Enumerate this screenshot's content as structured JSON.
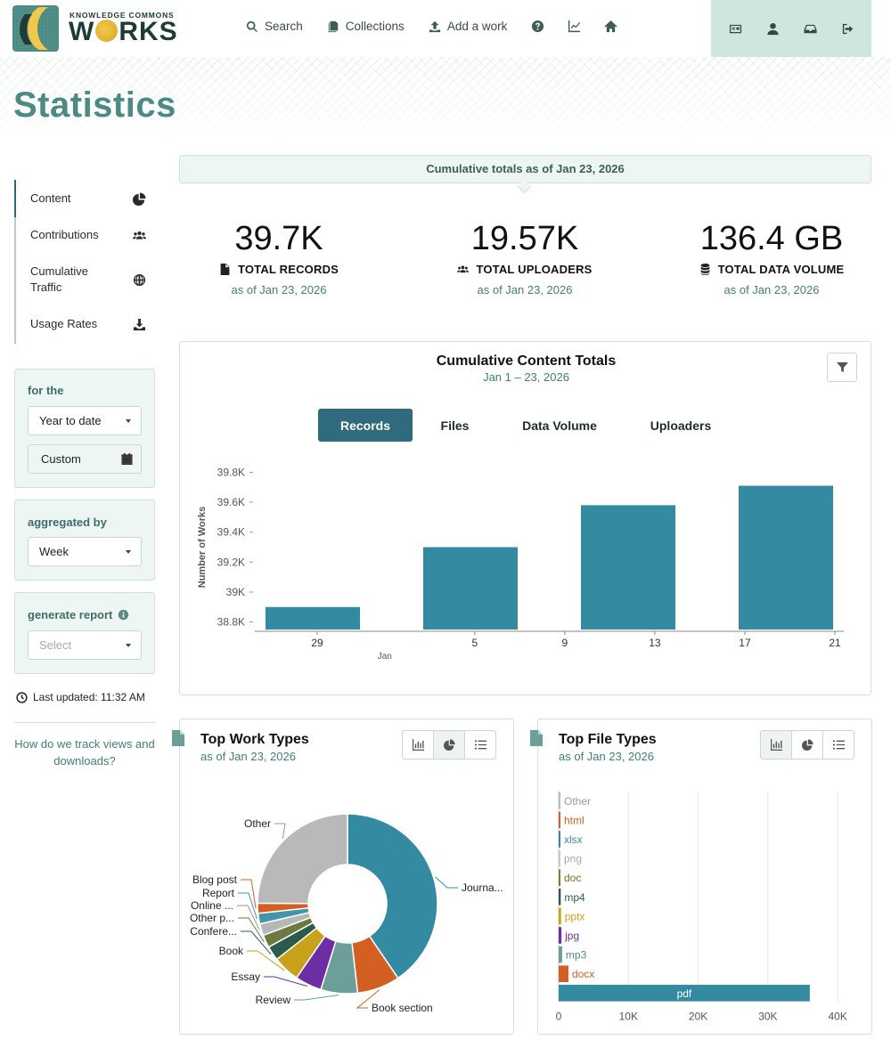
{
  "header": {
    "logo_small": "KNOWLEDGE COMMONS",
    "logo_big_left": "W",
    "logo_big_right": "RKS",
    "nav": [
      {
        "label": "Search",
        "icon": "search-icon"
      },
      {
        "label": "Collections",
        "icon": "collections-icon"
      },
      {
        "label": "Add a work",
        "icon": "upload-icon"
      }
    ],
    "nav_icons": [
      "help-icon",
      "stats-icon",
      "home-icon"
    ],
    "user_icons": [
      "profile-card-icon",
      "user-icon",
      "inbox-icon",
      "logout-icon"
    ]
  },
  "page": {
    "title": "Statistics"
  },
  "sidebar": {
    "menu": [
      {
        "label": "Content",
        "icon": "pie-chart-icon",
        "active": true
      },
      {
        "label": "Contributions",
        "icon": "users-icon"
      },
      {
        "label": "Cumulative Traffic",
        "icon": "globe-icon"
      },
      {
        "label": "Usage Rates",
        "icon": "download-icon"
      }
    ],
    "period": {
      "label": "for the",
      "selected": "Year to date",
      "custom_label": "Custom"
    },
    "aggregation": {
      "label": "aggregated by",
      "selected": "Week"
    },
    "report": {
      "label": "generate report",
      "placeholder": "Select"
    },
    "last_updated": "Last updated: 11:32 AM",
    "track_link": "How do we track views and downloads?"
  },
  "totals": {
    "banner": "Cumulative totals as of Jan 23, 2026",
    "stats": [
      {
        "value": "39.7K",
        "label": "TOTAL RECORDS",
        "date": "as of Jan 23, 2026",
        "icon": "file-icon"
      },
      {
        "value": "19.57K",
        "label": "TOTAL UPLOADERS",
        "date": "as of Jan 23, 2026",
        "icon": "users-icon"
      },
      {
        "value": "136.4 GB",
        "label": "TOTAL DATA VOLUME",
        "date": "as of Jan 23, 2026",
        "icon": "database-icon"
      }
    ]
  },
  "cumulative_card": {
    "title": "Cumulative Content Totals",
    "subtitle": "Jan 1 – 23, 2026",
    "tabs": [
      "Records",
      "Files",
      "Data Volume",
      "Uploaders"
    ],
    "active_tab": "Records"
  },
  "work_types_card": {
    "title": "Top Work Types",
    "subtitle": "as of Jan 23, 2026"
  },
  "file_types_card": {
    "title": "Top File Types",
    "subtitle": "as of Jan 23, 2026"
  },
  "colors": {
    "accent": "#2f6b7c",
    "bar": "#338aa1",
    "title": "#4c8a83"
  },
  "chart_data": [
    {
      "type": "bar",
      "name": "cumulative-content-totals",
      "ylabel": "Number of Works",
      "x": [
        29,
        5,
        9,
        13,
        17,
        21
      ],
      "x_tick_labels": [
        "29",
        "5",
        "9",
        "13",
        "17",
        "21"
      ],
      "x_sublabel": "Jan",
      "bars": [
        {
          "week_start": "Dec 29",
          "value": 38900
        },
        {
          "week_start": "Jan 5",
          "value": 39300
        },
        {
          "week_start": "Jan 12",
          "value": 39580
        },
        {
          "week_start": "Jan 19",
          "value": 39710
        }
      ],
      "y_ticks": [
        38800,
        39000,
        39200,
        39400,
        39600,
        39800
      ],
      "y_tick_labels": [
        "38.8K",
        "39K",
        "39.2K",
        "39.4K",
        "39.6K",
        "39.8K"
      ],
      "ylim": [
        38750,
        39850
      ]
    },
    {
      "type": "pie",
      "name": "top-work-types",
      "slices": [
        {
          "label": "Journa...",
          "value": 40.5,
          "color": "#338aa1"
        },
        {
          "label": "Book section",
          "value": 7.7,
          "color": "#d35f23"
        },
        {
          "label": "Review",
          "value": 6.6,
          "color": "#6c9e9a"
        },
        {
          "label": "Essay",
          "value": 4.8,
          "color": "#6d2ea3"
        },
        {
          "label": "Book",
          "value": 4.8,
          "color": "#c8a21b"
        },
        {
          "label": "Confere...",
          "value": 2.6,
          "color": "#2b5b4d"
        },
        {
          "label": "Other p...",
          "value": 2.3,
          "color": "#6b7a3f"
        },
        {
          "label": "Online ...",
          "value": 2.1,
          "color": "#b7b7b7"
        },
        {
          "label": "Report",
          "value": 1.9,
          "color": "#4395ae"
        },
        {
          "label": "Blog post",
          "value": 1.8,
          "color": "#d35f23"
        },
        {
          "label": "Other",
          "value": 24.9,
          "color": "#b9b9b9"
        }
      ]
    },
    {
      "type": "bar",
      "orientation": "horizontal",
      "name": "top-file-types",
      "categories": [
        "Other",
        "html",
        "xlsx",
        "png",
        "doc",
        "mp4",
        "pptx",
        "jpg",
        "mp3",
        "docx",
        "pdf"
      ],
      "values": [
        200,
        200,
        250,
        250,
        250,
        300,
        350,
        400,
        500,
        1400,
        36000
      ],
      "colors": [
        "#b9b9b9",
        "#d35f23",
        "#338aa1",
        "#c8c8c8",
        "#7a7f2a",
        "#2b5b4d",
        "#c8a21b",
        "#6d2ea3",
        "#6c9e9a",
        "#d35f23",
        "#338aa1"
      ],
      "label_colors": [
        "#9a9a9a",
        "#d35f23",
        "#338aa1",
        "#a8a8a8",
        "#6b7a22",
        "#2b5b4d",
        "#c8a21b",
        "#6d2ea3",
        "#4e8e8a",
        "#d35f23",
        "#ffffff"
      ],
      "x_ticks": [
        0,
        10000,
        20000,
        30000,
        40000
      ],
      "x_tick_labels": [
        "0",
        "10K",
        "20K",
        "30K",
        "40K"
      ],
      "xlim": [
        0,
        41000
      ]
    }
  ]
}
